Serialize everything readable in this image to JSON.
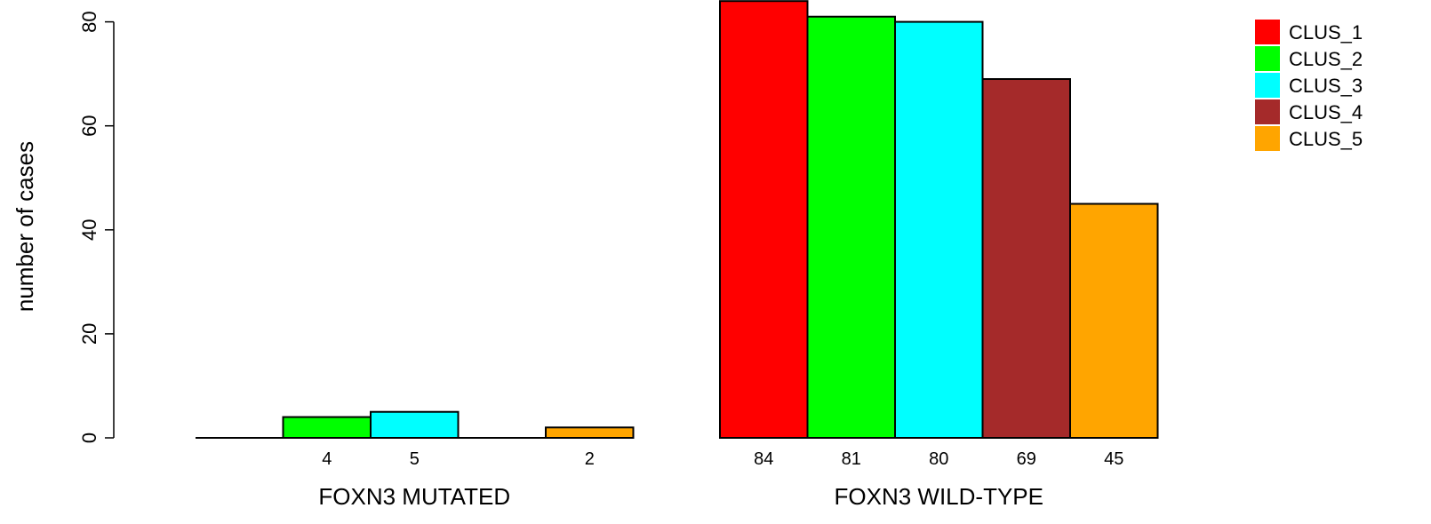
{
  "chart_data": {
    "type": "bar",
    "title": "",
    "ylabel": "number of cases",
    "xlabel": "",
    "ylim": [
      0,
      84
    ],
    "yticks": [
      0,
      20,
      40,
      60,
      80
    ],
    "groups": [
      {
        "label": "FOXN3 MUTATED",
        "values": [
          0,
          4,
          5,
          0,
          2
        ],
        "value_labels": [
          "",
          "4",
          "5",
          "",
          "2"
        ]
      },
      {
        "label": "FOXN3 WILD-TYPE",
        "values": [
          84,
          81,
          80,
          69,
          45
        ],
        "value_labels": [
          "84",
          "81",
          "80",
          "69",
          "45"
        ]
      }
    ],
    "series": [
      {
        "name": "CLUS_1",
        "color": "#ff0000"
      },
      {
        "name": "CLUS_2",
        "color": "#00ff00"
      },
      {
        "name": "CLUS_3",
        "color": "#00ffff"
      },
      {
        "name": "CLUS_4",
        "color": "#a52a2a"
      },
      {
        "name": "CLUS_5",
        "color": "#ffa500"
      }
    ],
    "legend_position": "top-right",
    "grid": false
  }
}
